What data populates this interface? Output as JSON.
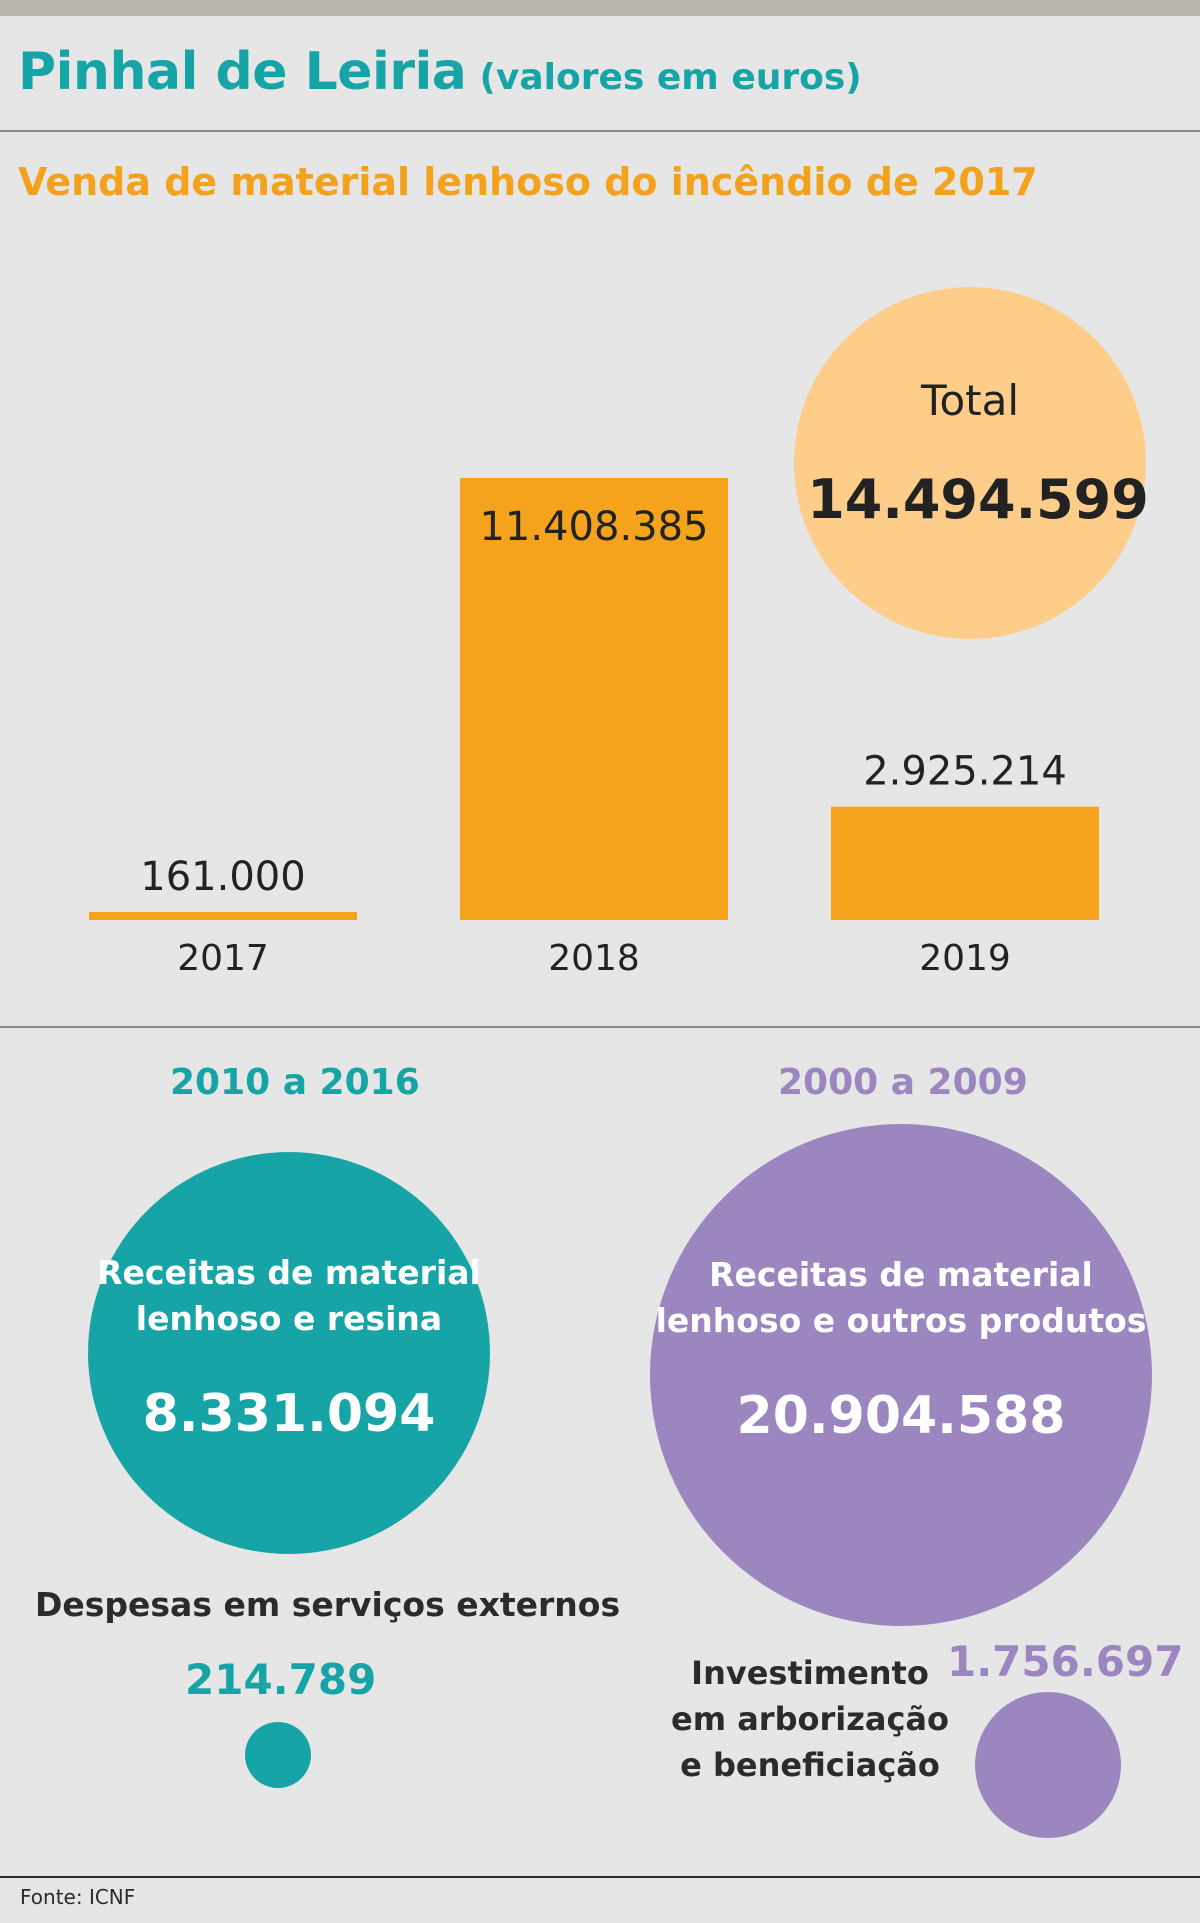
{
  "header": {
    "title": "Pinhal de Leiria",
    "title_suffix": "(valores em euros)"
  },
  "colors": {
    "teal": "#17a4a6",
    "orange": "#f5a31c",
    "light_orange": "#fecd89",
    "purple": "#9b86bf",
    "background": "#e6e6e6"
  },
  "chart_data": [
    {
      "type": "bar",
      "title": "Venda de material lenhoso do incêndio de 2017",
      "categories": [
        "2017",
        "2018",
        "2019"
      ],
      "values": [
        161000,
        11408385,
        2925214
      ],
      "value_labels": [
        "161.000",
        "11.408.385",
        "2.925.214"
      ],
      "ylim": [
        0,
        11408385
      ],
      "grid": false,
      "color": "#f5a31c",
      "total": {
        "label": "Total",
        "value": 14494599,
        "value_label": "14.494.599"
      }
    }
  ],
  "period_2010_2016": {
    "heading": "2010 a 2016",
    "big_circle": {
      "label_line1": "Receitas de material",
      "label_line2": "lenhoso e resina",
      "value": 8331094,
      "value_label": "8.331.094"
    },
    "small_circle": {
      "label": "Despesas em serviços externos",
      "value": 214789,
      "value_label": "214.789"
    }
  },
  "period_2000_2009": {
    "heading": "2000 a 2009",
    "big_circle": {
      "label_line1": "Receitas de material",
      "label_line2": "lenhoso e outros produtos",
      "value": 20904588,
      "value_label": "20.904.588"
    },
    "small_circle": {
      "label_line1": "Investimento",
      "label_line2": "em arborização",
      "label_line3": "e beneficiação",
      "value": 1756697,
      "value_label": "1.756.697"
    }
  },
  "source": "Fonte: ICNF"
}
